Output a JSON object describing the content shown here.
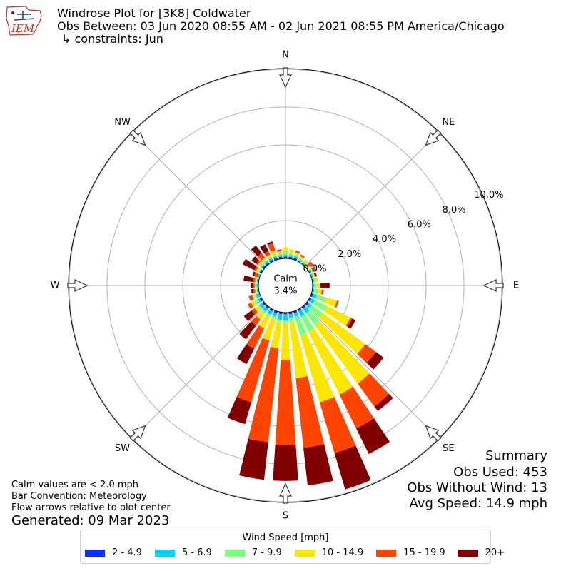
{
  "header": {
    "logo_text": "IEM",
    "title": "Windrose Plot for [3K8] Coldwater",
    "subtitle": "Obs Between: 03 Jun 2020 08:55 AM - 02 Jun 2021 08:55 PM America/Chicago",
    "constraint": "↳ constraints: Jun"
  },
  "notes": {
    "calm_def": "Calm values are < 2.0 mph",
    "bar_convention": "Bar Convention: Meteorology",
    "arrows": "Flow arrows relative to plot center.",
    "generated": "Generated: 09 Mar 2023"
  },
  "summary": {
    "title": "Summary",
    "obs_used": "Obs Used: 453",
    "obs_no_wind": "Obs Without Wind: 13",
    "avg_speed": "Avg Speed: 14.9 mph"
  },
  "legend": {
    "title": "Wind Speed [mph]",
    "items": [
      {
        "label": "2 - 4.9",
        "color": "#0a2cff"
      },
      {
        "label": "5 - 6.9",
        "color": "#00d4f0"
      },
      {
        "label": "7 - 9.9",
        "color": "#7cff7c"
      },
      {
        "label": "10 - 14.9",
        "color": "#fbe600"
      },
      {
        "label": "15 - 19.9",
        "color": "#ff4400"
      },
      {
        "label": "20+",
        "color": "#800000"
      }
    ]
  },
  "chart_data": {
    "type": "windrose",
    "calm_label": "Calm",
    "calm_value": "3.4%",
    "radial_ticks": [
      "0.0%",
      "2.0%",
      "4.0%",
      "6.0%",
      "8.0%",
      "10.0%"
    ],
    "radial_range": [
      0,
      11
    ],
    "compass_labels": [
      "N",
      "NE",
      "E",
      "SE",
      "S",
      "SW",
      "W",
      "NW"
    ],
    "bins": [
      "2 - 4.9",
      "5 - 6.9",
      "7 - 9.9",
      "10 - 14.9",
      "15 - 19.9",
      "20+"
    ],
    "directions": [
      0,
      10,
      20,
      30,
      40,
      50,
      60,
      70,
      80,
      90,
      100,
      110,
      120,
      130,
      140,
      150,
      160,
      170,
      180,
      190,
      200,
      210,
      220,
      230,
      240,
      250,
      260,
      270,
      280,
      290,
      300,
      310,
      320,
      330,
      340,
      350
    ],
    "cumulative": [
      [
        0.1,
        0.2,
        0.4,
        0.6,
        0.6,
        0.6
      ],
      [
        0.1,
        0.2,
        0.3,
        0.5,
        0.5,
        0.5
      ],
      [
        0.1,
        0.2,
        0.3,
        0.4,
        0.5,
        0.5
      ],
      [
        0.0,
        0.1,
        0.2,
        0.3,
        0.4,
        0.4
      ],
      [
        0.0,
        0.1,
        0.2,
        0.3,
        0.3,
        0.3
      ],
      [
        0.0,
        0.0,
        0.1,
        0.2,
        0.4,
        0.4
      ],
      [
        0.0,
        0.1,
        0.2,
        0.2,
        0.4,
        0.4
      ],
      [
        0.0,
        0.1,
        0.1,
        0.2,
        0.2,
        0.3
      ],
      [
        0.0,
        0.1,
        0.2,
        0.3,
        0.3,
        0.3
      ],
      [
        0.0,
        0.1,
        0.2,
        0.4,
        0.4,
        0.9
      ],
      [
        0.0,
        0.1,
        0.3,
        0.5,
        0.6,
        0.6
      ],
      [
        0.1,
        0.3,
        0.8,
        1.4,
        1.5,
        1.5
      ],
      [
        0.1,
        0.3,
        1.0,
        2.4,
        2.5,
        2.7
      ],
      [
        0.1,
        0.3,
        1.0,
        3.8,
        4.5,
        5.0
      ],
      [
        0.1,
        0.4,
        1.2,
        5.0,
        6.5,
        6.8
      ],
      [
        0.1,
        0.4,
        1.3,
        5.0,
        7.0,
        8.5
      ],
      [
        0.1,
        0.3,
        1.3,
        5.0,
        7.8,
        9.8
      ],
      [
        0.1,
        0.3,
        0.5,
        3.5,
        7.2,
        9.2
      ],
      [
        0.1,
        0.4,
        0.5,
        2.5,
        7.0,
        8.9
      ],
      [
        0.1,
        0.4,
        0.5,
        1.9,
        6.9,
        8.9
      ],
      [
        0.1,
        0.3,
        0.4,
        1.6,
        5.0,
        6.2
      ],
      [
        0.1,
        0.3,
        0.4,
        1.1,
        2.3,
        3.2
      ],
      [
        0.1,
        0.3,
        0.4,
        0.8,
        1.2,
        2.1
      ],
      [
        0.1,
        0.3,
        0.4,
        0.6,
        0.8,
        1.3
      ],
      [
        0.1,
        0.2,
        0.4,
        0.6,
        0.8,
        0.8
      ],
      [
        0.0,
        0.2,
        0.3,
        0.4,
        0.6,
        0.6
      ],
      [
        0.0,
        0.1,
        0.1,
        0.2,
        0.3,
        0.4
      ],
      [
        0.0,
        0.1,
        0.2,
        0.2,
        0.3,
        0.4
      ],
      [
        0.0,
        0.1,
        0.1,
        0.2,
        0.3,
        0.8
      ],
      [
        0.0,
        0.1,
        0.1,
        0.1,
        0.3,
        0.4
      ],
      [
        0.1,
        0.1,
        0.2,
        0.3,
        0.4,
        1.1
      ],
      [
        0.1,
        0.2,
        0.3,
        0.4,
        0.5,
        0.8
      ],
      [
        0.1,
        0.2,
        0.3,
        0.4,
        0.7,
        1.2
      ],
      [
        0.1,
        0.2,
        0.3,
        0.4,
        0.6,
        1.0
      ],
      [
        0.1,
        0.2,
        0.3,
        0.5,
        0.9,
        1.0
      ],
      [
        0.1,
        0.2,
        0.3,
        0.4,
        0.5,
        0.5
      ]
    ]
  }
}
